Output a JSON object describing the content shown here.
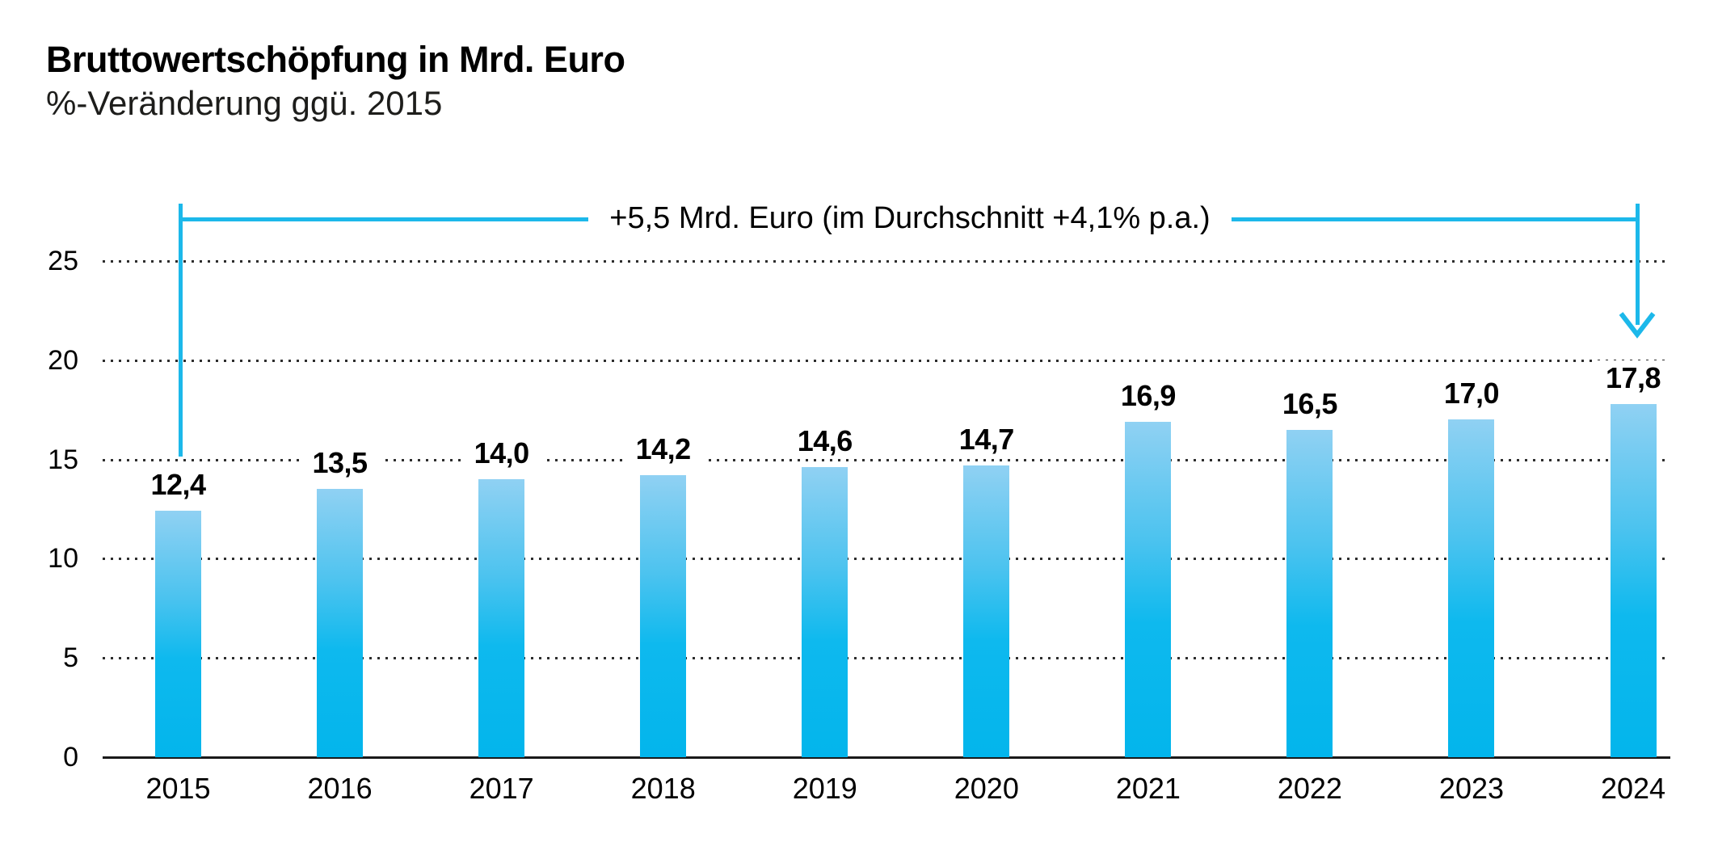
{
  "chart_data": {
    "type": "bar",
    "title": "Bruttowertschöpfung in Mrd. Euro",
    "subtitle": "%-Veränderung ggü. 2015",
    "categories": [
      "2015",
      "2016",
      "2017",
      "2018",
      "2019",
      "2020",
      "2021",
      "2022",
      "2023",
      "2024"
    ],
    "values": [
      12.4,
      13.5,
      14.0,
      14.2,
      14.6,
      14.7,
      16.9,
      16.5,
      17.0,
      17.8
    ],
    "value_labels": [
      "12,4",
      "13,5",
      "14,0",
      "14,2",
      "14,6",
      "14,7",
      "16,9",
      "16,5",
      "17,0",
      "17,8"
    ],
    "ylim": [
      0,
      25
    ],
    "yticks": [
      0,
      5,
      10,
      15,
      20,
      25
    ],
    "grid": "dotted horizontal gridlines",
    "legend": "none",
    "annotation": {
      "text": "+5,5 Mrd. Euro (im Durchschnitt +4,1% p.a.)",
      "from_category": "2015",
      "to_category": "2024",
      "arrow": "down into 2024 bar"
    },
    "colors": {
      "bar_gradient_top": "#90d1f3",
      "bar_gradient_bottom": "#03b5ec",
      "annotation_line": "#1cb8ea",
      "axis": "#1a1a1a",
      "gridline_dots": "#2d2d2d",
      "text": "#000000"
    }
  }
}
